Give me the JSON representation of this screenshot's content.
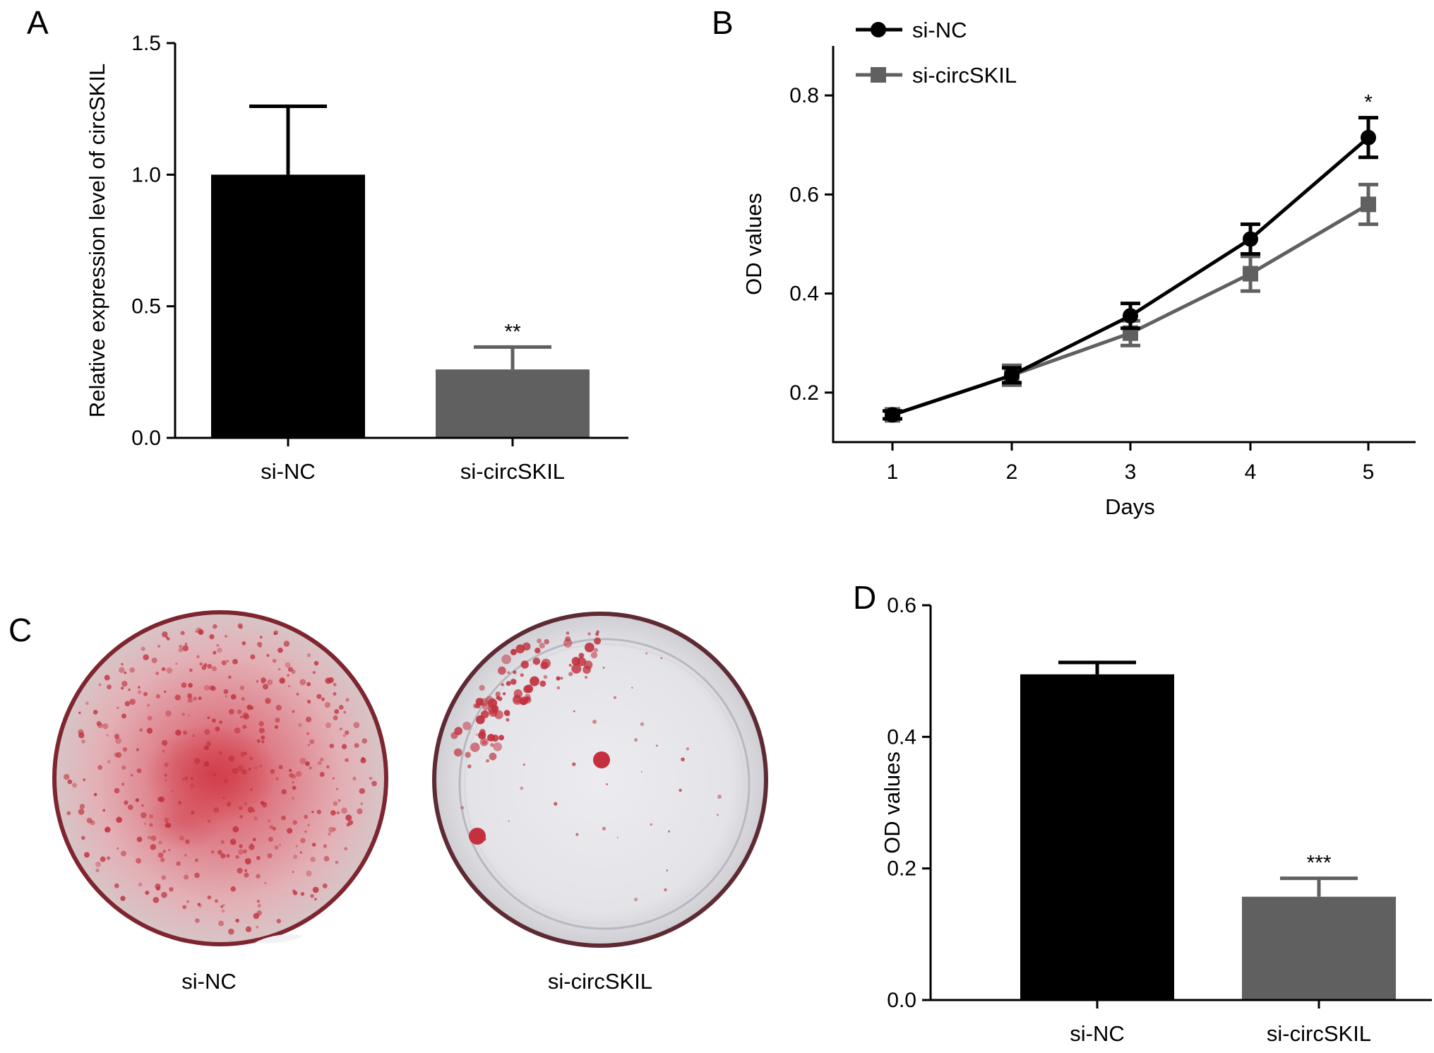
{
  "panels": {
    "A": "A",
    "B": "B",
    "C": "C",
    "D": "D"
  },
  "colors": {
    "si_nc": "#000000",
    "si_circskil": "#606060",
    "stain": "#c0303c"
  },
  "chart_data": [
    {
      "panel": "A",
      "type": "bar",
      "categories": [
        "si-NC",
        "si-circSKIL"
      ],
      "values": [
        1.0,
        0.26
      ],
      "errors": [
        0.26,
        0.085
      ],
      "significance": [
        "",
        "**"
      ],
      "ylabel": "Relative expression level of circSKIL",
      "xlabel": "",
      "ylim": [
        0,
        1.5
      ],
      "yticks": [
        0.0,
        0.5,
        1.0,
        1.5
      ],
      "ytick_labels": [
        "0.0",
        "0.5",
        "1.0",
        "1.5"
      ]
    },
    {
      "panel": "B",
      "type": "line",
      "x": [
        1,
        2,
        3,
        4,
        5
      ],
      "xtick_labels": [
        "1",
        "2",
        "3",
        "4",
        "5"
      ],
      "xlabel": "Days",
      "ylabel": "OD values",
      "ylim": [
        0.1,
        0.9
      ],
      "yticks": [
        0.2,
        0.4,
        0.6,
        0.8
      ],
      "ytick_labels": [
        "0.2",
        "0.4",
        "0.6",
        "0.8"
      ],
      "legend": "top-left",
      "series": [
        {
          "name": "si-NC",
          "marker": "circle",
          "values": [
            0.155,
            0.235,
            0.355,
            0.51,
            0.715
          ],
          "errors": [
            0.008,
            0.015,
            0.025,
            0.03,
            0.04
          ]
        },
        {
          "name": "si-circSKIL",
          "marker": "square",
          "values": [
            0.155,
            0.235,
            0.32,
            0.44,
            0.58
          ],
          "errors": [
            0.008,
            0.02,
            0.025,
            0.035,
            0.04
          ]
        }
      ],
      "significance": [
        {
          "x": 5,
          "label": "*"
        }
      ]
    },
    {
      "panel": "C",
      "type": "image",
      "labels": [
        "si-NC",
        "si-circSKIL"
      ]
    },
    {
      "panel": "D",
      "type": "bar",
      "categories": [
        "si-NC",
        "si-circSKIL"
      ],
      "values": [
        0.495,
        0.157
      ],
      "errors": [
        0.018,
        0.028
      ],
      "significance": [
        "",
        "***"
      ],
      "ylabel": "OD values",
      "xlabel": "",
      "ylim": [
        0,
        0.6
      ],
      "yticks": [
        0.0,
        0.2,
        0.4,
        0.6
      ],
      "ytick_labels": [
        "0.0",
        "0.2",
        "0.4",
        "0.6"
      ]
    }
  ]
}
